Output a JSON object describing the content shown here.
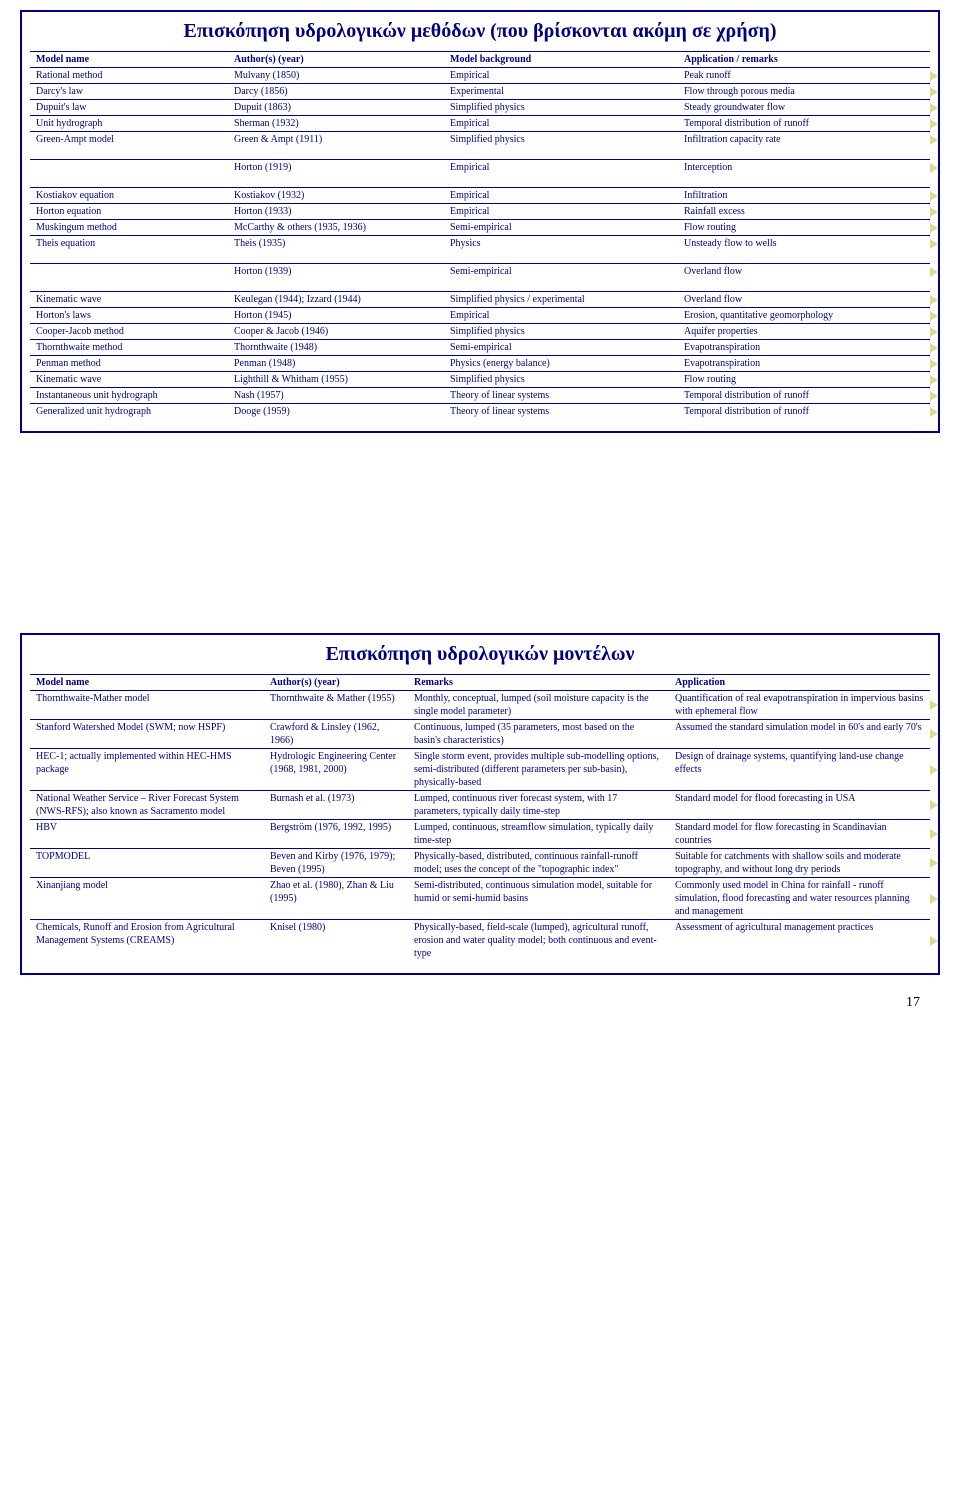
{
  "page_number": "17",
  "slide1": {
    "title": "Επισκόπηση υδρολογικών μεθόδων (που βρίσκονται ακόμη σε χρήση)",
    "headers": [
      "Model name",
      "Author(s) (year)",
      "Model background",
      "Application / remarks"
    ],
    "groups": [
      [
        [
          "Rational method",
          "Mulvany (1850)",
          "Empirical",
          "Peak runoff"
        ],
        [
          "Darcy's law",
          "Darcy (1856)",
          "Experimental",
          "Flow through porous media"
        ],
        [
          "Dupuit's law",
          "Dupuit (1863)",
          "Simplified physics",
          "Steady groundwater flow"
        ],
        [
          "Unit hydrograph",
          "Sherman (1932)",
          "Empirical",
          "Temporal distribution of runoff"
        ],
        [
          "Green-Ampt model",
          "Green & Ampt (1911)",
          "Simplified physics",
          "Infiltration capacity rate"
        ]
      ],
      [
        [
          "",
          "Horton (1919)",
          "Empirical",
          "Interception"
        ]
      ],
      [
        [
          "Kostiakov equation",
          "Kostiakov (1932)",
          "Empirical",
          "Infiltration"
        ],
        [
          "Horton equation",
          "Horton (1933)",
          "Empirical",
          "Rainfall excess"
        ],
        [
          "Muskingum method",
          "McCarthy & others (1935, 1936)",
          "Semi-empirical",
          "Flow routing"
        ],
        [
          "Theis equation",
          "Theis (1935)",
          "Physics",
          "Unsteady flow to wells"
        ]
      ],
      [
        [
          "",
          "Horton (1939)",
          "Semi-empirical",
          "Overland flow"
        ]
      ],
      [
        [
          "Kinematic wave",
          "Keulegan (1944); Izzard (1944)",
          "Simplified physics / experimental",
          "Overland flow"
        ],
        [
          "Horton's laws",
          "Horton (1945)",
          "Empirical",
          "Erosion, quantitative geomorphology"
        ],
        [
          "Cooper-Jacob method",
          "Cooper & Jacob (1946)",
          "Simplified physics",
          "Aquifer properties"
        ],
        [
          "Thornthwaite method",
          "Thornthwaite (1948)",
          "Semi-empirical",
          "Evapotranspiration"
        ],
        [
          "Penman method",
          "Penman (1948)",
          "Physics (energy balance)",
          "Evapotranspiration"
        ],
        [
          "Kinematic wave",
          "Lighthill & Whitham (1955)",
          "Simplified physics",
          "Flow routing"
        ],
        [
          "Instantaneous unit hydrograph",
          "Nash (1957)",
          "Theory of linear systems",
          "Temporal distribution of runoff"
        ],
        [
          "Generalized unit hydrograph",
          "Dooge (1959)",
          "Theory of linear systems",
          "Temporal distribution of runoff"
        ]
      ]
    ]
  },
  "slide2": {
    "title": "Επισκόπηση υδρολογικών μοντέλων",
    "headers": [
      "Model name",
      "Author(s) (year)",
      "Remarks",
      "Application"
    ],
    "rows": [
      [
        "Thornthwaite-Mather model",
        "Thornthwaite & Mather (1955)",
        "Monthly, conceptual, lumped (soil moisture capacity is the single model parameter)",
        "Quantification of real evapotranspiration in impervious basins with ephemeral flow"
      ],
      [
        "Stanford Watershed Model (SWM; now HSPF)",
        "Crawford & Linsley (1962, 1966)",
        "Continuous, lumped (35 parameters, most based on the basin's characteristics)",
        "Assumed the standard simulation model in 60's and early 70's"
      ],
      [
        "HEC-1; actually implemented within HEC-HMS package",
        "Hydrologic Engineering Center (1968, 1981, 2000)",
        "Single storm event, provides multiple sub-modelling options, semi-distributed (different parameters per sub-basin), physically-based",
        "Design of drainage systems, quantifying land-use change effects"
      ],
      [
        "National Weather Service – River Forecast System (NWS-RFS); also known as Sacramento model",
        "Burnash et al. (1973)",
        "Lumped, continuous river forecast system, with 17 parameters, typically daily time-step",
        "Standard model for flood forecasting in USA"
      ],
      [
        "HBV",
        "Bergström (1976, 1992, 1995)",
        "Lumped, continuous, streamflow simulation, typically daily time-step",
        "Standard model for flow forecasting in Scandinavian countries"
      ],
      [
        "TOPMODEL",
        "Beven and Kirby (1976, 1979); Beven (1995)",
        "Physically-based, distributed, continuous rainfall-runoff model; uses the concept of the \"topographic index\"",
        "Suitable for catchments with shallow soils and moderate topography, and without long dry periods"
      ],
      [
        "Xinanjiang model",
        "Zhao et al. (1980), Zhan & Liu (1995)",
        "Semi-distributed, continuous simulation model, suitable for humid or semi-humid basins",
        "Commonly used model in China for rainfall - runoff simulation, flood forecasting and water resources planning and management"
      ],
      [
        "Chemicals, Runoff and Erosion from Agricultural Management Systems (CREAMS)",
        "Knisel (1980)",
        "Physically-based, field-scale (lumped), agricultural runoff, erosion and water quality model; both continuous and event-type",
        "Assessment of agricultural management practices"
      ]
    ]
  }
}
